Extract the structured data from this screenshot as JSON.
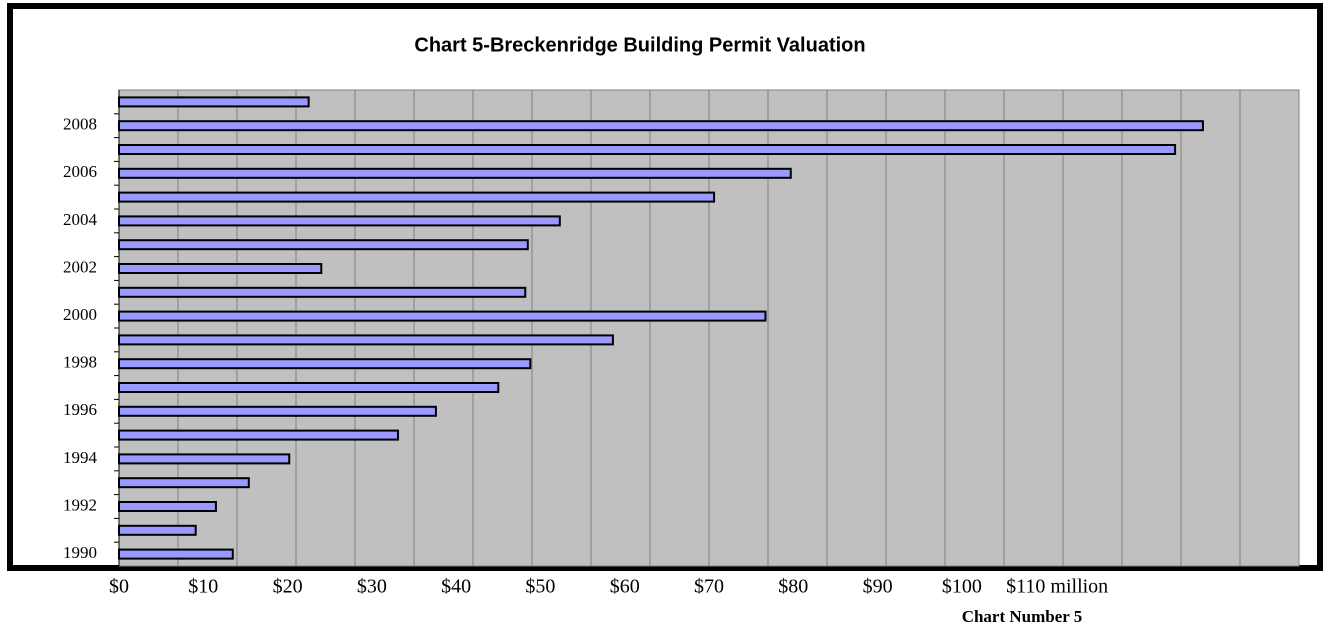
{
  "chart_data": {
    "type": "bar",
    "orientation": "horizontal",
    "title": "Chart 5-Breckenridge Building Permit Valuation",
    "caption": "Chart Number 5",
    "categories": [
      "1990",
      null,
      "1992",
      null,
      "1994",
      null,
      "1996",
      null,
      "1998",
      null,
      "2000",
      null,
      "2002",
      null,
      "2004",
      null,
      "2006",
      null,
      "2008",
      null
    ],
    "values": [
      13.5,
      9.1,
      11.5,
      15.4,
      20.2,
      33.1,
      37.6,
      45.0,
      48.8,
      58.6,
      76.7,
      48.2,
      24.0,
      48.5,
      52.3,
      70.6,
      79.7,
      125.3,
      128.6,
      22.5
    ],
    "color": "#9999ff",
    "xlim": [
      0,
      140
    ],
    "xticks": [
      {
        "value": 0,
        "label": "$0"
      },
      {
        "value": 10,
        "label": "$10"
      },
      {
        "value": 20,
        "label": "$20"
      },
      {
        "value": 30,
        "label": "$30"
      },
      {
        "value": 40,
        "label": "$40"
      },
      {
        "value": 50,
        "label": "$50"
      },
      {
        "value": 60,
        "label": "$60"
      },
      {
        "value": 70,
        "label": "$70"
      },
      {
        "value": 80,
        "label": "$80"
      },
      {
        "value": 90,
        "label": "$90"
      },
      {
        "value": 100,
        "label": "$100"
      },
      {
        "value": 110,
        "label": "$110 million"
      }
    ],
    "grid": true
  }
}
